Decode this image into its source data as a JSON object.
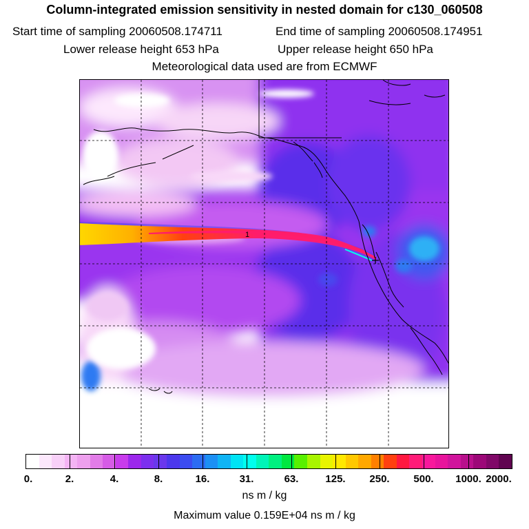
{
  "header": {
    "title": "Column-integrated emission sensitivity in nested domain for c130_060508",
    "start_label": "Start time of sampling 20060508.174711",
    "end_label": "End time of sampling 20060508.174951",
    "lower_label": "Lower release height  653 hPa",
    "upper_label": "Upper release height  650 hPa",
    "met_label": "Meteorological data used are from ECMWF"
  },
  "map": {
    "plume_marker": "1",
    "colors": {
      "background": "#ffffff",
      "very_low": "#f8d8f8",
      "low": "#f0a8f0",
      "medium": "#c64cf0",
      "medium_high": "#8a28ee",
      "high": "#5a2eea",
      "blue": "#2f7af2",
      "cyan": "#2fb0f5",
      "plume_core": "#ff1c6a",
      "plume_edge": "#ffd800",
      "coast": "#000000"
    }
  },
  "colorbar": {
    "colors": [
      "#ffffff",
      "#fce8fc",
      "#f8d0f8",
      "#f4b4f4",
      "#eea0ee",
      "#e27ce8",
      "#d65ce6",
      "#c83cec",
      "#9c28ec",
      "#7c30ee",
      "#6a38ec",
      "#4c38ec",
      "#3c4cf0",
      "#2c6cf2",
      "#1c90f4",
      "#10b4f4",
      "#00e4f4",
      "#00ffee",
      "#00f4b8",
      "#00f080",
      "#00e840",
      "#58f000",
      "#a8f400",
      "#e8f400",
      "#ffe800",
      "#ffc800",
      "#ffa800",
      "#ff8000",
      "#ff4010",
      "#ff1840",
      "#ff1c78",
      "#f8189c",
      "#e8149c",
      "#d0149c",
      "#b8108c",
      "#9c0878",
      "#800868",
      "#600450"
    ],
    "tick_labels": [
      "0.",
      "2.",
      "4.",
      "8.",
      "16.",
      "31.",
      "63.",
      "125.",
      "250.",
      "500.",
      "1000.",
      "2000."
    ],
    "units_label": "ns m / kg",
    "max_value_label": "Maximum value  0.159E+04 ns m / kg"
  }
}
